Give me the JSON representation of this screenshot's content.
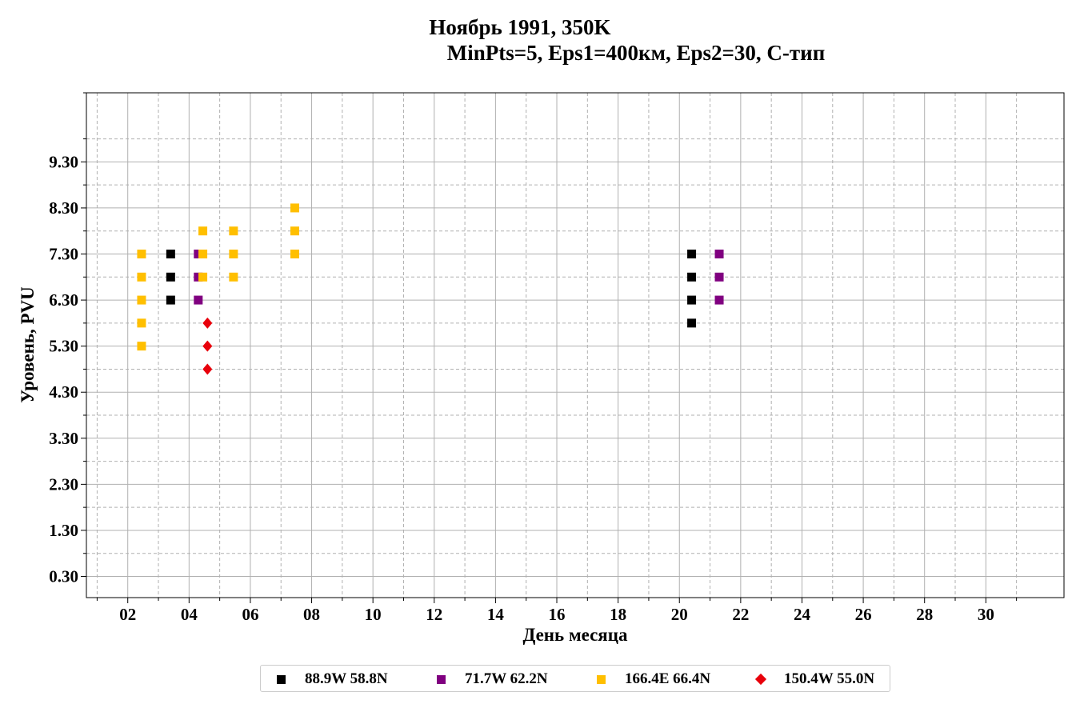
{
  "title": {
    "line1": "Ноябрь 1991, 350K",
    "line2": "MinPts=5, Eps1=400км, Eps2=30, С-тип"
  },
  "chart_data": {
    "type": "scatter",
    "xlabel": "День месяца",
    "ylabel": "Уровень, PVU",
    "xlim": [
      0.65,
      32.55
    ],
    "ylim": [
      -0.16,
      10.8
    ],
    "x_ticks": [
      "02",
      "04",
      "06",
      "08",
      "10",
      "12",
      "14",
      "16",
      "18",
      "20",
      "22",
      "24",
      "26",
      "28",
      "30"
    ],
    "y_ticks": [
      "0.30",
      "1.30",
      "2.30",
      "3.30",
      "4.30",
      "5.30",
      "6.30",
      "7.30",
      "8.30",
      "9.30"
    ],
    "grid": true,
    "legend_position": "bottom-center",
    "series": [
      {
        "name": "88.9W 58.8N",
        "color": "#000000",
        "marker": "square",
        "points": [
          [
            3.4,
            7.3
          ],
          [
            3.4,
            6.8
          ],
          [
            3.4,
            6.3
          ],
          [
            20.4,
            7.3
          ],
          [
            20.4,
            6.8
          ],
          [
            20.4,
            6.3
          ],
          [
            20.4,
            5.8
          ]
        ]
      },
      {
        "name": "71.7W 62.2N",
        "color": "#800080",
        "marker": "square",
        "points": [
          [
            4.3,
            7.3
          ],
          [
            4.3,
            6.8
          ],
          [
            4.3,
            6.3
          ],
          [
            21.3,
            7.3
          ],
          [
            21.3,
            6.8
          ],
          [
            21.3,
            6.3
          ]
        ]
      },
      {
        "name": "166.4E 66.4N",
        "color": "#FFBF00",
        "marker": "square",
        "points": [
          [
            2.45,
            7.3
          ],
          [
            2.45,
            6.8
          ],
          [
            2.45,
            6.3
          ],
          [
            2.45,
            5.8
          ],
          [
            2.45,
            5.3
          ],
          [
            4.45,
            7.8
          ],
          [
            4.45,
            7.3
          ],
          [
            4.45,
            6.8
          ],
          [
            5.45,
            7.8
          ],
          [
            5.45,
            7.3
          ],
          [
            5.45,
            6.8
          ],
          [
            7.45,
            8.3
          ],
          [
            7.45,
            7.8
          ],
          [
            7.45,
            7.3
          ]
        ]
      },
      {
        "name": "150.4W 55.0N",
        "color": "#E8000B",
        "marker": "diamond",
        "points": [
          [
            4.6,
            5.8
          ],
          [
            4.6,
            5.3
          ],
          [
            4.6,
            4.8
          ]
        ]
      }
    ]
  }
}
